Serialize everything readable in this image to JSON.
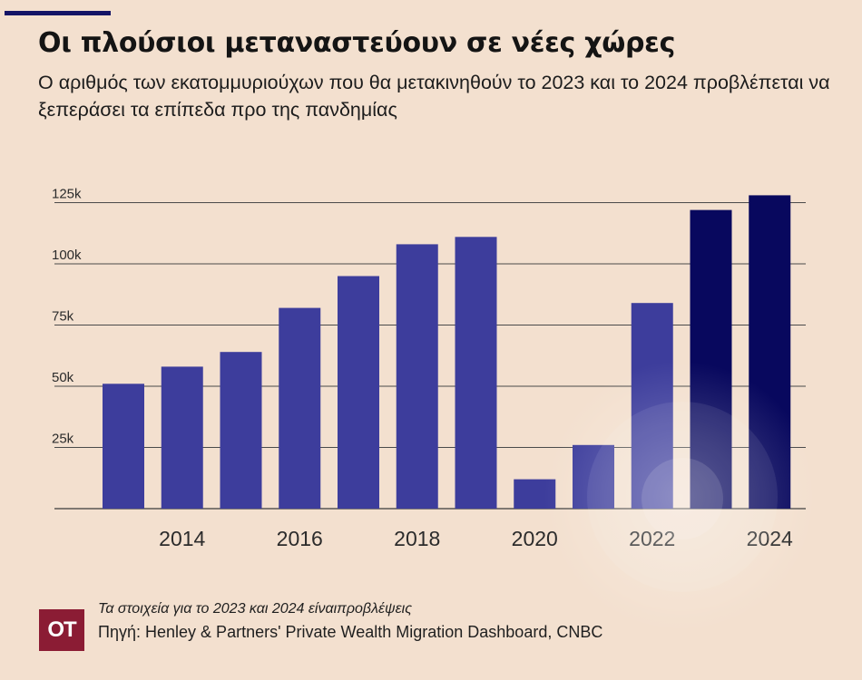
{
  "header": {
    "title": "Οι πλούσιοι μεταναστεύουν σε νέες χώρες",
    "subtitle": "Ο αριθμός των εκατομμυριούχων που θα μετακινηθούν το 2023 και το 2024 προβλέπεται να ξεπεράσει τα επίπεδα προ της πανδημίας"
  },
  "colors": {
    "background": "#f3e0cf",
    "bar_actual": "#3d3d9c",
    "bar_forecast": "#08085e",
    "accent": "#141466",
    "logo_bg": "#8b1c34"
  },
  "chart_data": {
    "type": "bar",
    "categories": [
      "2013",
      "2014",
      "2015",
      "2016",
      "2017",
      "2018",
      "2019",
      "2020",
      "2021",
      "2022",
      "2023",
      "2024"
    ],
    "values": [
      51,
      58,
      64,
      82,
      95,
      108,
      111,
      12,
      26,
      84,
      122,
      128
    ],
    "forecast": [
      false,
      false,
      false,
      false,
      false,
      false,
      false,
      false,
      false,
      false,
      true,
      true
    ],
    "x_tick_labels": [
      "2014",
      "2016",
      "2018",
      "2020",
      "2022",
      "2024"
    ],
    "y_ticks": [
      25,
      50,
      75,
      100,
      125
    ],
    "y_tick_labels": [
      "25k",
      "50k",
      "75k",
      "100k",
      "125k"
    ],
    "ylim": [
      0,
      130
    ],
    "grid": true
  },
  "footer": {
    "logo": "OT",
    "note": "Τα στοιχεία για το 2023 και 2024 είναιπροβλέψεις",
    "source": "Πηγή: Henley & Partners' Private Wealth Migration Dashboard, CNBC"
  }
}
